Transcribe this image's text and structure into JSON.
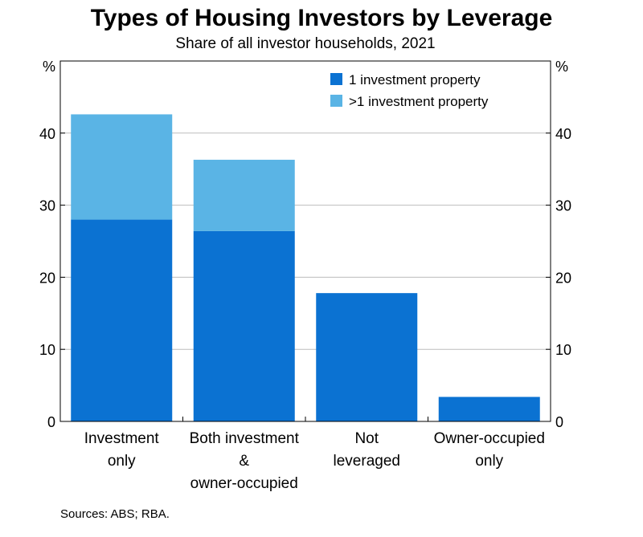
{
  "title": "Types of Housing Investors by Leverage",
  "subtitle": "Share of all investor households, 2021",
  "source": "Sources: ABS; RBA.",
  "chart_data": {
    "type": "bar",
    "stacked": true,
    "categories": [
      [
        "Investment",
        "only"
      ],
      [
        "Both investment",
        "&",
        "owner-occupied"
      ],
      [
        "Not",
        "leveraged"
      ],
      [
        "Owner-occupied",
        "only"
      ]
    ],
    "series": [
      {
        "name": "1 investment property",
        "color": "#0b72d2",
        "values": [
          28.0,
          26.4,
          17.8,
          3.4
        ]
      },
      {
        "name": ">1 investment property",
        "color": "#5ab4e5",
        "values": [
          14.6,
          9.9,
          0,
          0
        ]
      }
    ],
    "y_unit_left": "%",
    "y_unit_right": "%",
    "ylim": [
      0,
      50
    ],
    "yticks": [
      0,
      10,
      20,
      30,
      40
    ],
    "grid": true,
    "legend_position": "top-right"
  }
}
